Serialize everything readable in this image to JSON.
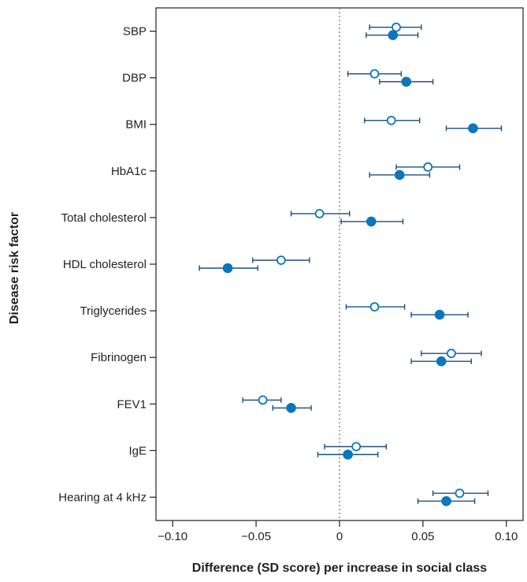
{
  "chart_data": {
    "type": "scatter",
    "subtype": "forest-plot",
    "title": "",
    "xlabel": "Difference (SD score) per increase in social class",
    "ylabel": "Disease risk factor",
    "xlim": [
      -0.11,
      0.11
    ],
    "xticks": [
      -0.1,
      -0.05,
      0,
      0.05,
      0.1
    ],
    "xtick_labels": [
      "−0.10",
      "−0.05",
      "0",
      "0.05",
      "0.10"
    ],
    "reference_line_x": 0,
    "grid": false,
    "categories": [
      "SBP",
      "DBP",
      "BMI",
      "HbA1c",
      "Total cholesterol",
      "HDL cholesterol",
      "Triglycerides",
      "Fibrinogen",
      "FEV1",
      "IgE",
      "Hearing at 4 kHz"
    ],
    "series": [
      {
        "marker": "open-circle",
        "color": "#0a76bd",
        "values": [
          0.034,
          0.021,
          0.031,
          0.053,
          -0.012,
          -0.035,
          0.021,
          0.067,
          -0.046,
          0.01,
          0.072
        ],
        "ci_low": [
          0.018,
          0.005,
          0.015,
          0.034,
          -0.029,
          -0.052,
          0.004,
          0.049,
          -0.058,
          -0.009,
          0.056
        ],
        "ci_high": [
          0.049,
          0.037,
          0.048,
          0.072,
          0.006,
          -0.018,
          0.039,
          0.085,
          -0.035,
          0.028,
          0.089
        ]
      },
      {
        "marker": "filled-circle",
        "color": "#0a76bd",
        "values": [
          0.032,
          0.04,
          0.08,
          0.036,
          0.019,
          -0.067,
          0.06,
          0.061,
          -0.029,
          0.005,
          0.064
        ],
        "ci_low": [
          0.016,
          0.024,
          0.064,
          0.018,
          0.001,
          -0.084,
          0.043,
          0.043,
          -0.04,
          -0.013,
          0.047
        ],
        "ci_high": [
          0.047,
          0.056,
          0.097,
          0.054,
          0.038,
          -0.049,
          0.077,
          0.079,
          -0.017,
          0.023,
          0.081
        ]
      }
    ],
    "colors": {
      "marker": "#0a76bd",
      "errorbar": "#1b4f7e",
      "axis": "#231f20",
      "reference_line": "#6d6e71"
    }
  }
}
